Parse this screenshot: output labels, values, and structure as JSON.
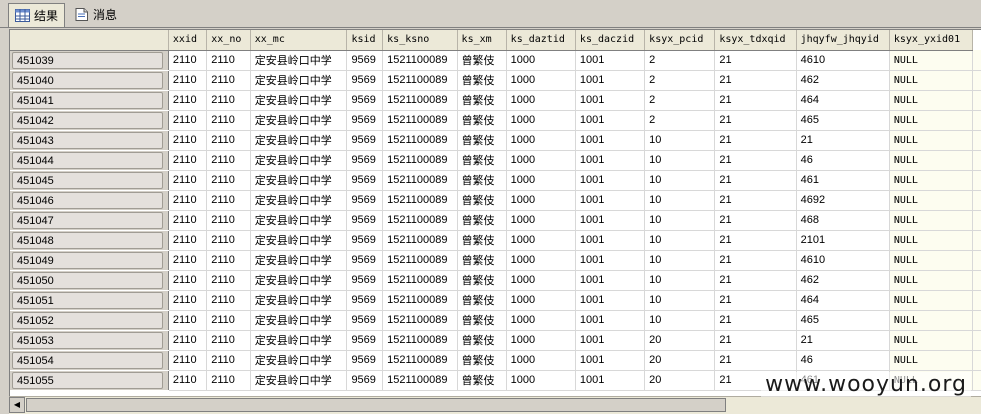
{
  "tabs": [
    {
      "label": "结果",
      "icon": "grid-icon",
      "active": true
    },
    {
      "label": "消息",
      "icon": "message-icon",
      "active": false
    }
  ],
  "columns": [
    "xxid",
    "xx_no",
    "xx_mc",
    "ksid",
    "ks_ksno",
    "ks_xm",
    "ks_daztid",
    "ks_daczid",
    "ksyx_pcid",
    "ksyx_tdxqid",
    "jhqyfw_jhqyid",
    "ksyx_yxid01"
  ],
  "rows": [
    {
      "id": "451039",
      "cells": [
        "2110",
        "2110",
        "定安县岭口中学",
        "9569",
        "1521100089",
        "曾繁伎",
        "1000",
        "1001",
        "2",
        "21",
        "4610",
        "NULL"
      ]
    },
    {
      "id": "451040",
      "cells": [
        "2110",
        "2110",
        "定安县岭口中学",
        "9569",
        "1521100089",
        "曾繁伎",
        "1000",
        "1001",
        "2",
        "21",
        "462",
        "NULL"
      ]
    },
    {
      "id": "451041",
      "cells": [
        "2110",
        "2110",
        "定安县岭口中学",
        "9569",
        "1521100089",
        "曾繁伎",
        "1000",
        "1001",
        "2",
        "21",
        "464",
        "NULL"
      ]
    },
    {
      "id": "451042",
      "cells": [
        "2110",
        "2110",
        "定安县岭口中学",
        "9569",
        "1521100089",
        "曾繁伎",
        "1000",
        "1001",
        "2",
        "21",
        "465",
        "NULL"
      ]
    },
    {
      "id": "451043",
      "cells": [
        "2110",
        "2110",
        "定安县岭口中学",
        "9569",
        "1521100089",
        "曾繁伎",
        "1000",
        "1001",
        "10",
        "21",
        "21",
        "NULL"
      ]
    },
    {
      "id": "451044",
      "cells": [
        "2110",
        "2110",
        "定安县岭口中学",
        "9569",
        "1521100089",
        "曾繁伎",
        "1000",
        "1001",
        "10",
        "21",
        "46",
        "NULL"
      ]
    },
    {
      "id": "451045",
      "cells": [
        "2110",
        "2110",
        "定安县岭口中学",
        "9569",
        "1521100089",
        "曾繁伎",
        "1000",
        "1001",
        "10",
        "21",
        "461",
        "NULL"
      ]
    },
    {
      "id": "451046",
      "cells": [
        "2110",
        "2110",
        "定安县岭口中学",
        "9569",
        "1521100089",
        "曾繁伎",
        "1000",
        "1001",
        "10",
        "21",
        "4692",
        "NULL"
      ]
    },
    {
      "id": "451047",
      "cells": [
        "2110",
        "2110",
        "定安县岭口中学",
        "9569",
        "1521100089",
        "曾繁伎",
        "1000",
        "1001",
        "10",
        "21",
        "468",
        "NULL"
      ]
    },
    {
      "id": "451048",
      "cells": [
        "2110",
        "2110",
        "定安县岭口中学",
        "9569",
        "1521100089",
        "曾繁伎",
        "1000",
        "1001",
        "10",
        "21",
        "2101",
        "NULL"
      ]
    },
    {
      "id": "451049",
      "cells": [
        "2110",
        "2110",
        "定安县岭口中学",
        "9569",
        "1521100089",
        "曾繁伎",
        "1000",
        "1001",
        "10",
        "21",
        "4610",
        "NULL"
      ]
    },
    {
      "id": "451050",
      "cells": [
        "2110",
        "2110",
        "定安县岭口中学",
        "9569",
        "1521100089",
        "曾繁伎",
        "1000",
        "1001",
        "10",
        "21",
        "462",
        "NULL"
      ]
    },
    {
      "id": "451051",
      "cells": [
        "2110",
        "2110",
        "定安县岭口中学",
        "9569",
        "1521100089",
        "曾繁伎",
        "1000",
        "1001",
        "10",
        "21",
        "464",
        "NULL"
      ]
    },
    {
      "id": "451052",
      "cells": [
        "2110",
        "2110",
        "定安县岭口中学",
        "9569",
        "1521100089",
        "曾繁伎",
        "1000",
        "1001",
        "10",
        "21",
        "465",
        "NULL"
      ]
    },
    {
      "id": "451053",
      "cells": [
        "2110",
        "2110",
        "定安县岭口中学",
        "9569",
        "1521100089",
        "曾繁伎",
        "1000",
        "1001",
        "20",
        "21",
        "21",
        "NULL"
      ]
    },
    {
      "id": "451054",
      "cells": [
        "2110",
        "2110",
        "定安县岭口中学",
        "9569",
        "1521100089",
        "曾繁伎",
        "1000",
        "1001",
        "20",
        "21",
        "46",
        "NULL"
      ]
    },
    {
      "id": "451055",
      "cells": [
        "2110",
        "2110",
        "定安县岭口中学",
        "9569",
        "1521100089",
        "曾繁伎",
        "1000",
        "1001",
        "20",
        "21",
        "461",
        "NULL"
      ]
    }
  ],
  "watermark": "www.wooyun.org"
}
